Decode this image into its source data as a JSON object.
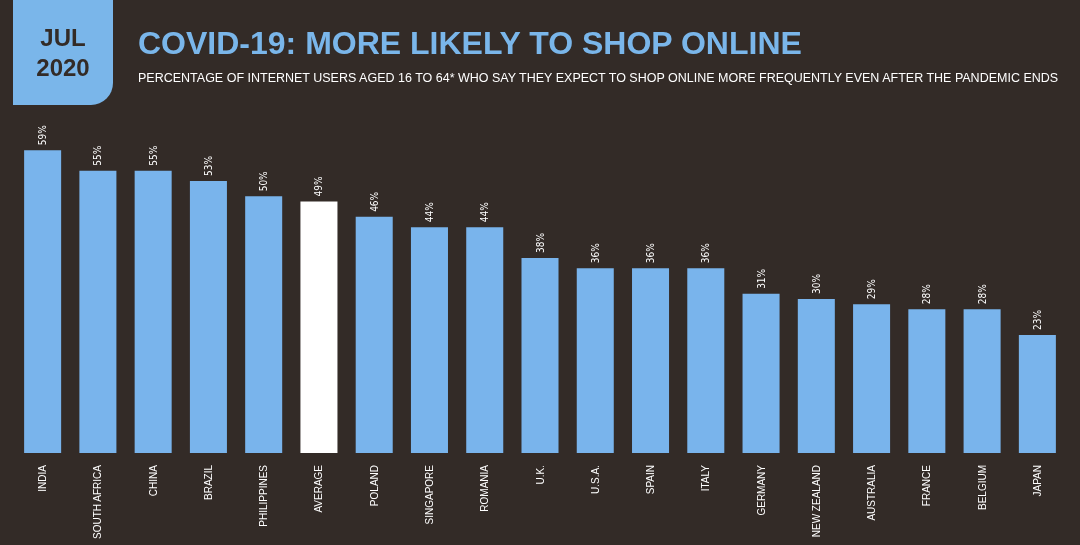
{
  "chart_data": {
    "type": "bar",
    "title": "COVID-19: MORE LIKELY TO SHOP ONLINE",
    "subtitle": "PERCENTAGE OF INTERNET USERS AGED 16 TO 64* WHO SAY THEY EXPECT TO SHOP ONLINE MORE FREQUENTLY EVEN AFTER THE PANDEMIC ENDS",
    "annotations": [
      "JUL 2020"
    ],
    "categories": [
      "INDIA",
      "SOUTH AFRICA",
      "CHINA",
      "BRAZIL",
      "PHILIPPINES",
      "AVERAGE",
      "POLAND",
      "SINGAPORE",
      "ROMANIA",
      "U.K.",
      "U.S.A.",
      "SPAIN",
      "ITALY",
      "GERMANY",
      "NEW ZEALAND",
      "AUSTRALIA",
      "FRANCE",
      "BELGIUM",
      "JAPAN"
    ],
    "values": [
      59,
      55,
      55,
      53,
      50,
      49,
      46,
      44,
      44,
      38,
      36,
      36,
      36,
      31,
      30,
      29,
      28,
      28,
      23
    ],
    "value_labels": [
      "59%",
      "55%",
      "55%",
      "53%",
      "50%",
      "49%",
      "46%",
      "44%",
      "44%",
      "38%",
      "36%",
      "36%",
      "36%",
      "31%",
      "30%",
      "29%",
      "28%",
      "28%",
      "23%"
    ],
    "colors": [
      "#79b4ec",
      "#79b4ec",
      "#79b4ec",
      "#79b4ec",
      "#79b4ec",
      "#ffffff",
      "#79b4ec",
      "#79b4ec",
      "#79b4ec",
      "#79b4ec",
      "#79b4ec",
      "#79b4ec",
      "#79b4ec",
      "#79b4ec",
      "#79b4ec",
      "#79b4ec",
      "#79b4ec",
      "#79b4ec",
      "#79b4ec"
    ]
  }
}
